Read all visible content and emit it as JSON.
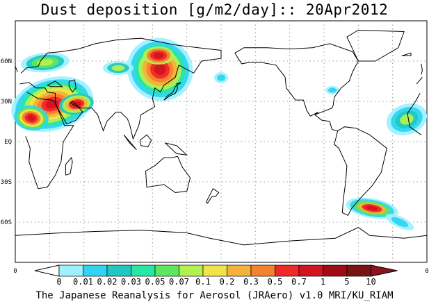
{
  "title": "Dust deposition [g/m2/day]:: 20Apr2012",
  "footer": "The Japanese Reanalysis for Aerosol (JRAero) v1.0 MRI/KU_RIAM",
  "lat_labels": [
    "60N",
    "30N",
    "EQ",
    "30S",
    "60S"
  ],
  "lat_values": [
    60,
    30,
    0,
    -30,
    -60
  ],
  "lon_labels": [
    "0",
    "0"
  ],
  "colorbar": {
    "labels": [
      "0",
      "0.01",
      "0.02",
      "0.03",
      "0.05",
      "0.07",
      "0.1",
      "0.2",
      "0.3",
      "0.5",
      "0.7",
      "1",
      "5",
      "10"
    ],
    "colors": [
      "#ffffff",
      "#9ff0ff",
      "#30d4f0",
      "#21c8c0",
      "#28e6a6",
      "#5ee65e",
      "#b4f050",
      "#f0e448",
      "#f3b23a",
      "#f5822e",
      "#f0282a",
      "#d21420",
      "#a00a12",
      "#781414"
    ],
    "triangle_left": "#ffffff",
    "triangle_right": "#8c141a"
  }
}
